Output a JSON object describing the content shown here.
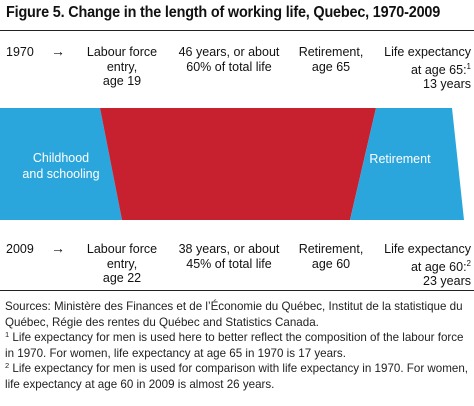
{
  "title": "Figure 5. Change in the length of working life, Quebec, 1970-2009",
  "colors": {
    "blue": "#2BA6DD",
    "red": "#C7202F"
  },
  "rows": [
    {
      "year": "1970",
      "arrow": "→",
      "entry": [
        "Labour force",
        "entry,",
        "age 19"
      ],
      "working": [
        "46 years, or about",
        "60% of total life"
      ],
      "retirement": [
        "Retirement,",
        "age 65"
      ],
      "life_expectancy": [
        "Life expectancy",
        "at age 65:",
        "13 years"
      ],
      "footnote_mark": "1"
    },
    {
      "year": "2009",
      "arrow": "→",
      "entry": [
        "Labour force",
        "entry,",
        "age 22"
      ],
      "working": [
        "38 years, or about",
        "45% of total life"
      ],
      "retirement": [
        "Retirement,",
        "age 60"
      ],
      "life_expectancy": [
        "Life expectancy",
        "at age 60:",
        "23 years"
      ],
      "footnote_mark": "2"
    }
  ],
  "segments": {
    "childhood": [
      "Childhood",
      "and schooling"
    ],
    "retirement": "Retirement"
  },
  "notes": {
    "sources": "Sources: Ministère des Finances et de l’Économie du Québec, Institut de la statistique du Québec, Régie des rentes du Québec and Statistics Canada.",
    "footnote1_mark": "1",
    "footnote1": " Life expectancy for men is used here to better reflect the composition of the labour force in 1970. For women, life expectancy at age 65 in 1970 is 17 years.",
    "footnote2_mark": "2",
    "footnote2": " Life expectancy for men is used for comparison with life expectancy in 1970. For women, life expectancy at age 60 in 2009 is almost 26 years."
  }
}
